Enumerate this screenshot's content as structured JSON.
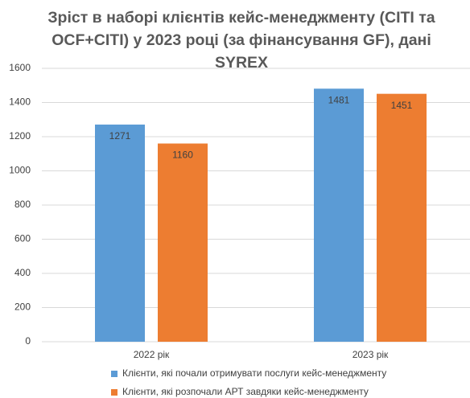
{
  "chart_data": {
    "type": "bar",
    "title": "Зріст в наборі клієнтів кейс-менеджменту (CITI та OCF+CITI) у 2023 році (за фінансування GF), дані SYREX",
    "categories": [
      "2022 рік",
      "2023 рік"
    ],
    "series": [
      {
        "name": "Клієнти, які почали отримувати послуги кейс-менеджменту",
        "color": "#5b9bd5",
        "values": [
          1271,
          1481
        ]
      },
      {
        "name": "Клієнти, які розпочали АРТ завдяки кейс-менеджменту",
        "color": "#ed7d31",
        "values": [
          1160,
          1451
        ]
      }
    ],
    "ylim": [
      0,
      1600
    ],
    "yticks": [
      0,
      200,
      400,
      600,
      800,
      1000,
      1200,
      1400,
      1600
    ],
    "grid": true,
    "legend": "bottom"
  }
}
